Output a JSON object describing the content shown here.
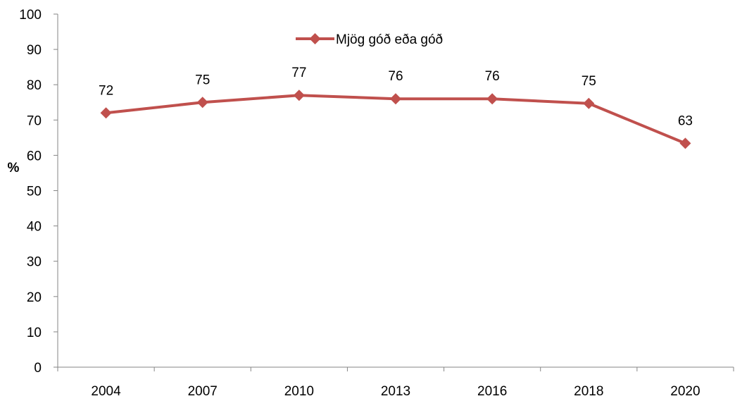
{
  "chart_data": {
    "type": "line",
    "title": "",
    "xlabel": "",
    "ylabel": "%",
    "categories": [
      "2004",
      "2007",
      "2010",
      "2013",
      "2016",
      "2018",
      "2020"
    ],
    "series": [
      {
        "name": "Mjög góð eða góð",
        "values": [
          72,
          75,
          77,
          76,
          76,
          74.7,
          63.4
        ],
        "labels": [
          "72",
          "75",
          "77",
          "76",
          "76",
          "75",
          "63"
        ],
        "color": "#c0504d",
        "marker": "diamond"
      }
    ],
    "ylim": [
      0,
      100
    ],
    "yticks": [
      0,
      10,
      20,
      30,
      40,
      50,
      60,
      70,
      80,
      90,
      100
    ],
    "grid": false,
    "legend": "top-center"
  }
}
